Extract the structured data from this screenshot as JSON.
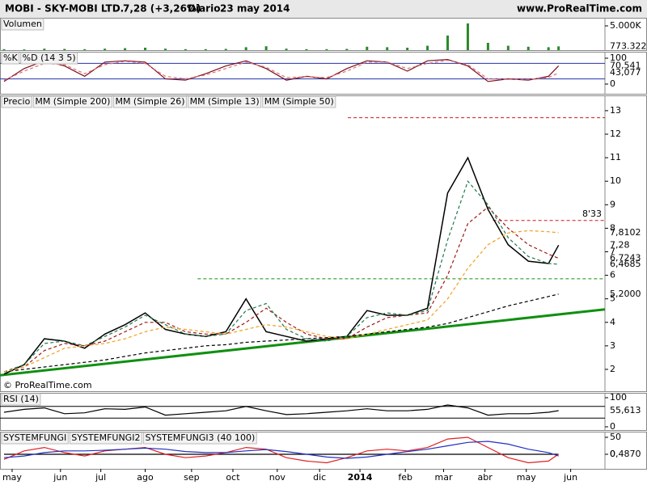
{
  "header": {
    "symbol": "MOBI - SKY-MOBI LTD.",
    "quote": "7,28 (+3,26%)",
    "period": "Diario",
    "date": "23 may 2014",
    "site": "www.ProRealTime.com"
  },
  "chart_data": {
    "type": "financial",
    "x": [
      2,
      12,
      22,
      32,
      42,
      52,
      62,
      72,
      82,
      92,
      102,
      112,
      122,
      132,
      142,
      152,
      162,
      172,
      182,
      192,
      202,
      212,
      222,
      232,
      242,
      252,
      262,
      272,
      277
    ],
    "xlim": [
      0,
      300
    ],
    "xticks": [
      {
        "value": 6,
        "label": "may"
      },
      {
        "value": 30,
        "label": "jun"
      },
      {
        "value": 50,
        "label": "jul"
      },
      {
        "value": 72,
        "label": "ago"
      },
      {
        "value": 95,
        "label": "sep"
      },
      {
        "value": 115.5,
        "label": "oct"
      },
      {
        "value": 137.5,
        "label": "nov"
      },
      {
        "value": 158.5,
        "label": "dic"
      },
      {
        "value": 178.5,
        "label": "2014"
      },
      {
        "value": 201,
        "label": "feb"
      },
      {
        "value": 220,
        "label": "mar"
      },
      {
        "value": 240.5,
        "label": "abr"
      },
      {
        "value": 261,
        "label": "may"
      },
      {
        "value": 283,
        "label": "jun"
      }
    ],
    "panels": [
      {
        "type": "bar",
        "ylim": [
          0,
          6667
        ],
        "yticks": [
          {
            "value": 5000,
            "label": "5.000K"
          }
        ],
        "series": [
          {
            "name": "Volumen",
            "color": "#2a8a2a",
            "values": [
              200,
              150,
              300,
              250,
              200,
              300,
              400,
              500,
              300,
              200,
              200,
              250,
              600,
              800,
              300,
              200,
              200,
              250,
              700,
              600,
              500,
              900,
              3000,
              5500,
              1500,
              900,
              700,
              600,
              773.322
            ],
            "last_label": "773.322"
          }
        ]
      },
      {
        "type": "line",
        "ylim": [
          -37.5,
          125
        ],
        "yticks": [
          0,
          100
        ],
        "levels": [
          20,
          80
        ],
        "level_color": "#2233aa",
        "series": [
          {
            "name": "%K",
            "color": "#7a1020",
            "values": [
              10,
              60,
              90,
              70,
              30,
              85,
              90,
              85,
              20,
              15,
              40,
              70,
              90,
              60,
              15,
              30,
              20,
              60,
              90,
              85,
              50,
              90,
              95,
              70,
              10,
              20,
              15,
              30,
              70.541
            ],
            "last_label": "70,541"
          },
          {
            "name": "%D (14 3 5)",
            "color": "#e07070",
            "dash": true,
            "values": [
              15,
              50,
              80,
              75,
              40,
              75,
              88,
              80,
              30,
              20,
              35,
              60,
              85,
              65,
              25,
              28,
              25,
              50,
              85,
              85,
              60,
              80,
              92,
              75,
              20,
              18,
              18,
              25,
              43.077
            ],
            "last_label": "43,077"
          }
        ]
      },
      {
        "type": "line",
        "ylim": [
          1.07,
          13.65
        ],
        "yticks": [
          2,
          3,
          4,
          5,
          6,
          7,
          8,
          9,
          10,
          11,
          12,
          13
        ],
        "series": [
          {
            "name": "Precio",
            "color": "#000000",
            "values": [
              1.8,
              2.2,
              3.3,
              3.2,
              2.9,
              3.5,
              3.9,
              4.4,
              3.7,
              3.5,
              3.4,
              3.6,
              5.0,
              3.6,
              3.4,
              3.2,
              3.3,
              3.4,
              4.5,
              4.3,
              4.3,
              4.6,
              9.5,
              11.0,
              8.8,
              7.3,
              6.6,
              6.5,
              7.28
            ],
            "last_label": "7,28"
          },
          {
            "name": "MM (Simple 200)",
            "color": "#000000",
            "dash": true,
            "values": [
              1.9,
              2.0,
              2.1,
              2.2,
              2.3,
              2.4,
              2.55,
              2.7,
              2.8,
              2.9,
              3.0,
              3.05,
              3.15,
              3.2,
              3.25,
              3.3,
              3.35,
              3.4,
              3.5,
              3.6,
              3.7,
              3.8,
              3.95,
              4.2,
              4.45,
              4.7,
              4.9,
              5.1,
              5.2
            ],
            "last_label": "5,2000"
          },
          {
            "name": "MM (Simple 26)",
            "color": "#a01818",
            "dash": true,
            "values": [
              1.9,
              2.1,
              2.8,
              3.1,
              3.0,
              3.2,
              3.6,
              4.0,
              4.0,
              3.6,
              3.5,
              3.5,
              4.0,
              4.6,
              4.0,
              3.5,
              3.3,
              3.3,
              3.8,
              4.2,
              4.3,
              4.4,
              6.0,
              8.2,
              8.9,
              8.0,
              7.3,
              6.9,
              6.7243
            ],
            "last_label": "6,7243"
          },
          {
            "name": "MM (Simple 13)",
            "color": "#1f7a4a",
            "dash": true,
            "values": [
              1.9,
              2.2,
              3.1,
              3.2,
              3.0,
              3.4,
              3.8,
              4.3,
              3.9,
              3.5,
              3.4,
              3.5,
              4.5,
              4.8,
              3.7,
              3.3,
              3.2,
              3.4,
              4.2,
              4.4,
              4.3,
              4.5,
              7.5,
              10.0,
              9.0,
              7.6,
              6.8,
              6.5,
              6.4685
            ],
            "last_label": "6,4685"
          },
          {
            "name": "MM (Simple 50)",
            "color": "#f0a020",
            "dash": true,
            "values": [
              1.9,
              2.1,
              2.5,
              2.9,
              3.0,
              3.1,
              3.3,
              3.6,
              3.8,
              3.7,
              3.6,
              3.5,
              3.7,
              3.9,
              3.8,
              3.6,
              3.4,
              3.3,
              3.5,
              3.7,
              3.9,
              4.1,
              5.0,
              6.3,
              7.3,
              7.8,
              7.9,
              7.85,
              7.8102
            ],
            "last_label": "7,8102"
          }
        ],
        "hlines": [
          {
            "value": 12.7,
            "x_start": 172.5,
            "color": "#d01818"
          },
          {
            "value": 8.33,
            "x_start": 244.5,
            "color": "#d01818",
            "label": "8'33"
          },
          {
            "value": 5.85,
            "x_start": 98,
            "color": "#109010"
          }
        ],
        "trendline": {
          "x": [
            0,
            300
          ],
          "y": [
            1.75,
            4.55
          ],
          "color": "#109010"
        },
        "watermark": "© ProRealTime.com"
      },
      {
        "type": "line",
        "ylim": [
          -11.1,
          116.7
        ],
        "yticks": [
          0,
          100
        ],
        "levels": [
          30,
          70
        ],
        "level_color": "#000000",
        "series": [
          {
            "name": "RSI (14)",
            "color": "#000000",
            "values": [
              50,
              60,
              65,
              45,
              48,
              62,
              60,
              68,
              40,
              45,
              50,
              55,
              70,
              55,
              42,
              45,
              50,
              55,
              62,
              55,
              55,
              60,
              75,
              65,
              40,
              45,
              45,
              50,
              55.613
            ],
            "last_label": "55,613"
          }
        ]
      },
      {
        "type": "line",
        "ylim": [
          -42.9,
          66.7
        ],
        "yticks": [
          0,
          50
        ],
        "series": [
          {
            "name": "SYSTEMFUNGI",
            "color": "#000000",
            "values": [
              0,
              0,
              0,
              0,
              0,
              0,
              0,
              0,
              0,
              0,
              0,
              0,
              0,
              0,
              0,
              0,
              0,
              0,
              0,
              0,
              0,
              0,
              0,
              0,
              0,
              0,
              0,
              0,
              0
            ]
          },
          {
            "name": "SYSTEMFUNGI2",
            "color": "#e02020",
            "values": [
              -15,
              10,
              20,
              5,
              -5,
              10,
              15,
              20,
              0,
              -10,
              -5,
              5,
              20,
              15,
              -10,
              -20,
              -25,
              -10,
              10,
              15,
              10,
              20,
              45,
              50,
              20,
              -10,
              -25,
              -20,
              0.487
            ],
            "last_label": "0,4870"
          },
          {
            "name": "SYSTEMFUNGI3 (40 100)",
            "color": "#2030c0",
            "values": [
              -10,
              -5,
              5,
              10,
              10,
              12,
              15,
              18,
              15,
              8,
              5,
              5,
              10,
              14,
              8,
              0,
              -8,
              -12,
              -8,
              0,
              8,
              15,
              25,
              35,
              38,
              30,
              15,
              5,
              -4.9
            ]
          }
        ]
      }
    ]
  }
}
